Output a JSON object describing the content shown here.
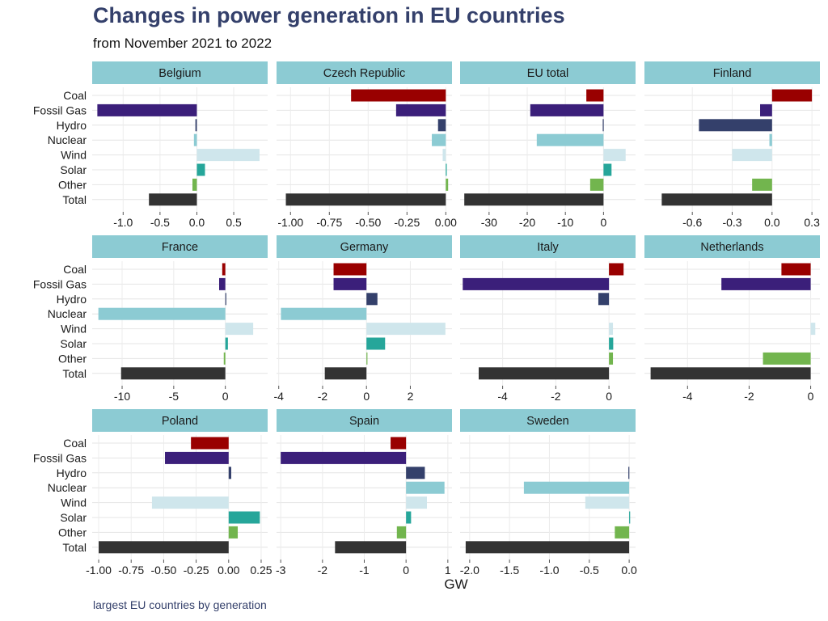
{
  "title": "Changes in power generation in EU countries",
  "subtitle": "from November 2021 to 2022",
  "caption": "largest EU countries by generation",
  "chart_data": {
    "type": "bar",
    "orientation": "horizontal",
    "layout": "small-multiples",
    "xlabel": "GW",
    "categories": [
      "Coal",
      "Fossil Gas",
      "Hydro",
      "Nuclear",
      "Wind",
      "Solar",
      "Other",
      "Total"
    ],
    "colors": {
      "Coal": "#990000",
      "Fossil Gas": "#3b1f7a",
      "Hydro": "#34406b",
      "Nuclear": "#8ccbd3",
      "Wind": "#cfe6ec",
      "Solar": "#26a69a",
      "Other": "#72b54e",
      "Total": "#333333"
    },
    "strip_color": "#8ccbd3",
    "panels": [
      {
        "name": "Belgium",
        "xlim": [
          -1.42,
          0.96
        ],
        "ticks": [
          -1.0,
          -0.5,
          0.0,
          0.5
        ],
        "tick_labels": [
          "-1.0",
          "-0.5",
          "0.0",
          "0.5"
        ],
        "values": [
          0,
          -1.35,
          -0.02,
          -0.04,
          0.85,
          0.11,
          -0.06,
          -0.65
        ]
      },
      {
        "name": "Czech Republic",
        "xlim": [
          -1.09,
          0.04
        ],
        "ticks": [
          -1.0,
          -0.75,
          -0.5,
          -0.25,
          0.0
        ],
        "tick_labels": [
          "-1.00",
          "-0.75",
          "-0.50",
          "-0.25",
          "0.00"
        ],
        "values": [
          -0.61,
          -0.32,
          -0.05,
          -0.09,
          -0.02,
          0.005,
          0.015,
          -1.03
        ]
      },
      {
        "name": "EU total",
        "xlim": [
          -37.6,
          8.4
        ],
        "ticks": [
          -30,
          -20,
          -10,
          0
        ],
        "tick_labels": [
          "-30",
          "-20",
          "-10",
          "0"
        ],
        "values": [
          -4.5,
          -19.2,
          -0.2,
          -17.5,
          5.8,
          2.1,
          -3.5,
          -36.5
        ]
      },
      {
        "name": "Finland",
        "xlim": [
          -0.96,
          0.36
        ],
        "ticks": [
          -0.6,
          -0.3,
          0.0,
          0.3
        ],
        "tick_labels": [
          "-0.6",
          "-0.3",
          "0.0",
          "0.3"
        ],
        "values": [
          0.3,
          -0.09,
          -0.55,
          -0.02,
          -0.3,
          0,
          -0.15,
          -0.83
        ]
      },
      {
        "name": "France",
        "xlim": [
          -12.9,
          4.1
        ],
        "ticks": [
          -10,
          -5,
          0
        ],
        "tick_labels": [
          "-10",
          "-5",
          "0"
        ],
        "values": [
          -0.3,
          -0.6,
          0.05,
          -12.3,
          2.7,
          0.25,
          -0.15,
          -10.1
        ]
      },
      {
        "name": "Germany",
        "xlim": [
          -4.1,
          3.9
        ],
        "ticks": [
          -4,
          -2,
          0,
          2
        ],
        "tick_labels": [
          "-4",
          "-2",
          "0",
          "2"
        ],
        "values": [
          -1.5,
          -1.5,
          0.5,
          -3.9,
          3.6,
          0.85,
          0.02,
          -1.9
        ]
      },
      {
        "name": "Italy",
        "xlim": [
          -5.6,
          1.0
        ],
        "ticks": [
          -4,
          -2,
          0
        ],
        "tick_labels": [
          "-4",
          "-2",
          "0"
        ],
        "values": [
          0.55,
          -5.5,
          -0.4,
          0,
          0.15,
          0.16,
          0.15,
          -4.9
        ]
      },
      {
        "name": "Netherlands",
        "xlim": [
          -5.4,
          0.3
        ],
        "ticks": [
          -4,
          -2,
          0
        ],
        "tick_labels": [
          "-4",
          "-2",
          "0"
        ],
        "values": [
          -0.95,
          -2.9,
          0,
          0,
          0.15,
          0,
          -1.55,
          -5.2
        ]
      },
      {
        "name": "Poland",
        "xlim": [
          -1.05,
          0.3
        ],
        "ticks": [
          -1.0,
          -0.75,
          -0.5,
          -0.25,
          0.0,
          0.25
        ],
        "tick_labels": [
          "-1.00",
          "-0.75",
          "-0.50",
          "-0.25",
          "0.00",
          "0.25"
        ],
        "values": [
          -0.29,
          -0.49,
          0.02,
          0,
          -0.59,
          0.24,
          0.07,
          -1.0
        ]
      },
      {
        "name": "Spain",
        "xlim": [
          -3.1,
          1.1
        ],
        "ticks": [
          -3,
          -2,
          -1,
          0,
          1
        ],
        "tick_labels": [
          "-3",
          "-2",
          "-1",
          "0",
          "1"
        ],
        "values": [
          -0.37,
          -3.0,
          0.45,
          0.92,
          0.5,
          0.12,
          -0.22,
          -1.7
        ]
      },
      {
        "name": "Sweden",
        "xlim": [
          -2.12,
          0.08
        ],
        "ticks": [
          -2.0,
          -1.5,
          -1.0,
          -0.5,
          0.0
        ],
        "tick_labels": [
          "-2.0",
          "-1.5",
          "-1.0",
          "-0.5",
          "0.0"
        ],
        "values": [
          0,
          0,
          -0.01,
          -1.32,
          -0.55,
          0.01,
          -0.18,
          -2.05
        ]
      }
    ]
  }
}
